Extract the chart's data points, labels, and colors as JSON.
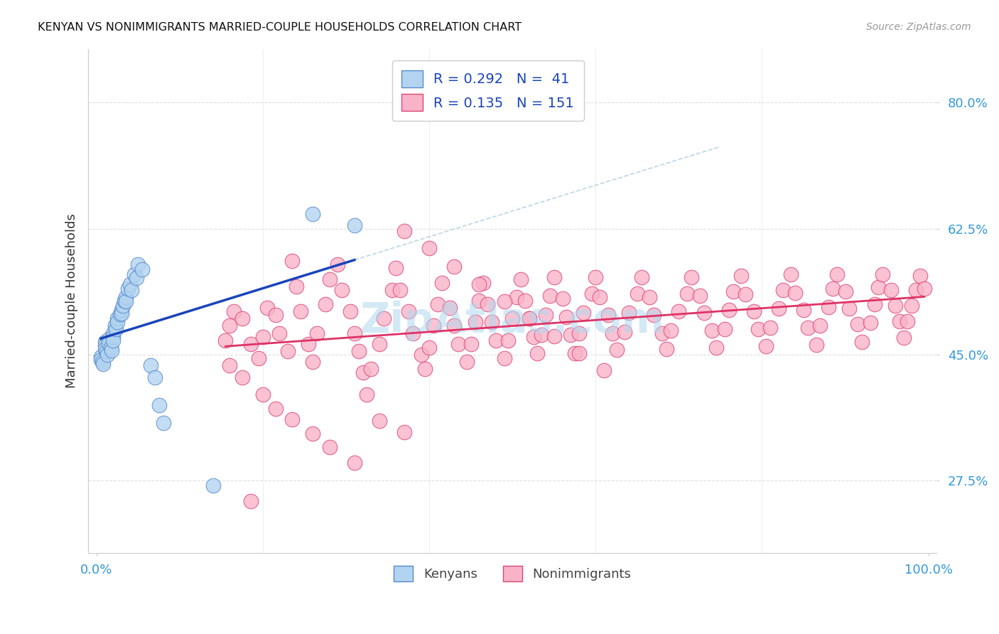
{
  "title": "KENYAN VS NONIMMIGRANTS MARRIED-COUPLE HOUSEHOLDS CORRELATION CHART",
  "source": "Source: ZipAtlas.com",
  "ylabel": "Married-couple Households",
  "xlim": [
    -0.01,
    1.01
  ],
  "ylim": [
    0.175,
    0.875
  ],
  "yticks": [
    0.275,
    0.45,
    0.625,
    0.8
  ],
  "ytick_labels": [
    "27.5%",
    "45.0%",
    "62.5%",
    "80.0%"
  ],
  "xtick_positions": [
    0.0,
    1.0
  ],
  "xtick_labels": [
    "0.0%",
    "100.0%"
  ],
  "legend_R1": "0.292",
  "legend_N1": " 41",
  "legend_R2": "0.135",
  "legend_N2": "151",
  "kenyan_color": "#b3d4f0",
  "nonimmigrant_color": "#f9b3c8",
  "kenyan_edge": "#5588cc",
  "nonimmigrant_edge": "#dd4477",
  "trend_kenyan_color": "#1a44bb",
  "trend_nonimmigrant_color": "#dd3366",
  "bg_color": "#ffffff",
  "title_color": "#111111",
  "tick_color": "#3399dd",
  "source_color": "#999999",
  "watermark_color": "#b0d8f0",
  "grid_color": "#dddddd",
  "kenyan_x": [
    0.005,
    0.005,
    0.007,
    0.008,
    0.01,
    0.01,
    0.01,
    0.012,
    0.013,
    0.015,
    0.015,
    0.017,
    0.018,
    0.02,
    0.02,
    0.02,
    0.022,
    0.023,
    0.025,
    0.025,
    0.028,
    0.03,
    0.03,
    0.032,
    0.033,
    0.035,
    0.035,
    0.038,
    0.04,
    0.042,
    0.045,
    0.048,
    0.05,
    0.055,
    0.065,
    0.07,
    0.075,
    0.08,
    0.14,
    0.26,
    0.31
  ],
  "kenyan_y": [
    0.447,
    0.443,
    0.44,
    0.437,
    0.468,
    0.463,
    0.458,
    0.455,
    0.45,
    0.472,
    0.466,
    0.46,
    0.456,
    0.48,
    0.475,
    0.47,
    0.49,
    0.486,
    0.5,
    0.495,
    0.506,
    0.512,
    0.507,
    0.518,
    0.525,
    0.53,
    0.524,
    0.542,
    0.548,
    0.54,
    0.562,
    0.557,
    0.575,
    0.568,
    0.435,
    0.418,
    0.38,
    0.355,
    0.268,
    0.645,
    0.63
  ],
  "nonimmigrant_x": [
    0.155,
    0.16,
    0.165,
    0.175,
    0.185,
    0.195,
    0.2,
    0.205,
    0.215,
    0.22,
    0.23,
    0.235,
    0.24,
    0.245,
    0.255,
    0.26,
    0.265,
    0.275,
    0.28,
    0.29,
    0.295,
    0.305,
    0.31,
    0.315,
    0.32,
    0.325,
    0.33,
    0.34,
    0.345,
    0.355,
    0.36,
    0.365,
    0.375,
    0.38,
    0.39,
    0.395,
    0.4,
    0.405,
    0.41,
    0.415,
    0.425,
    0.43,
    0.435,
    0.445,
    0.45,
    0.455,
    0.46,
    0.465,
    0.47,
    0.475,
    0.48,
    0.49,
    0.495,
    0.5,
    0.505,
    0.51,
    0.515,
    0.52,
    0.525,
    0.53,
    0.535,
    0.54,
    0.545,
    0.55,
    0.56,
    0.565,
    0.57,
    0.575,
    0.58,
    0.585,
    0.595,
    0.6,
    0.605,
    0.615,
    0.62,
    0.625,
    0.635,
    0.64,
    0.65,
    0.655,
    0.665,
    0.67,
    0.68,
    0.685,
    0.69,
    0.7,
    0.71,
    0.715,
    0.725,
    0.73,
    0.74,
    0.745,
    0.755,
    0.76,
    0.765,
    0.775,
    0.78,
    0.79,
    0.795,
    0.805,
    0.81,
    0.82,
    0.825,
    0.835,
    0.84,
    0.85,
    0.855,
    0.865,
    0.87,
    0.88,
    0.885,
    0.89,
    0.9,
    0.905,
    0.915,
    0.92,
    0.93,
    0.935,
    0.94,
    0.945,
    0.955,
    0.96,
    0.965,
    0.97,
    0.975,
    0.98,
    0.985,
    0.99,
    0.995,
    0.16,
    0.175,
    0.2,
    0.215,
    0.235,
    0.26,
    0.28,
    0.31,
    0.34,
    0.37,
    0.185,
    0.37,
    0.4,
    0.43,
    0.46,
    0.49,
    0.52,
    0.55,
    0.58,
    0.61
  ],
  "nonimmigrant_y": [
    0.47,
    0.49,
    0.51,
    0.5,
    0.465,
    0.445,
    0.475,
    0.515,
    0.505,
    0.48,
    0.455,
    0.58,
    0.545,
    0.51,
    0.465,
    0.44,
    0.48,
    0.52,
    0.555,
    0.575,
    0.54,
    0.51,
    0.48,
    0.455,
    0.425,
    0.395,
    0.43,
    0.465,
    0.5,
    0.54,
    0.57,
    0.54,
    0.51,
    0.48,
    0.45,
    0.43,
    0.46,
    0.49,
    0.52,
    0.55,
    0.515,
    0.49,
    0.465,
    0.44,
    0.465,
    0.495,
    0.525,
    0.55,
    0.52,
    0.495,
    0.47,
    0.445,
    0.47,
    0.5,
    0.53,
    0.555,
    0.525,
    0.5,
    0.475,
    0.452,
    0.478,
    0.505,
    0.532,
    0.558,
    0.528,
    0.502,
    0.478,
    0.452,
    0.48,
    0.508,
    0.535,
    0.558,
    0.53,
    0.505,
    0.48,
    0.457,
    0.482,
    0.508,
    0.535,
    0.558,
    0.53,
    0.505,
    0.48,
    0.458,
    0.484,
    0.51,
    0.535,
    0.558,
    0.532,
    0.508,
    0.484,
    0.46,
    0.486,
    0.512,
    0.538,
    0.56,
    0.534,
    0.51,
    0.486,
    0.462,
    0.488,
    0.514,
    0.54,
    0.562,
    0.536,
    0.512,
    0.488,
    0.464,
    0.49,
    0.516,
    0.542,
    0.562,
    0.538,
    0.514,
    0.492,
    0.468,
    0.494,
    0.52,
    0.544,
    0.562,
    0.54,
    0.518,
    0.496,
    0.474,
    0.496,
    0.518,
    0.54,
    0.56,
    0.542,
    0.435,
    0.418,
    0.395,
    0.375,
    0.36,
    0.34,
    0.322,
    0.3,
    0.358,
    0.342,
    0.247,
    0.622,
    0.598,
    0.572,
    0.548,
    0.524,
    0.5,
    0.476,
    0.452,
    0.428
  ]
}
